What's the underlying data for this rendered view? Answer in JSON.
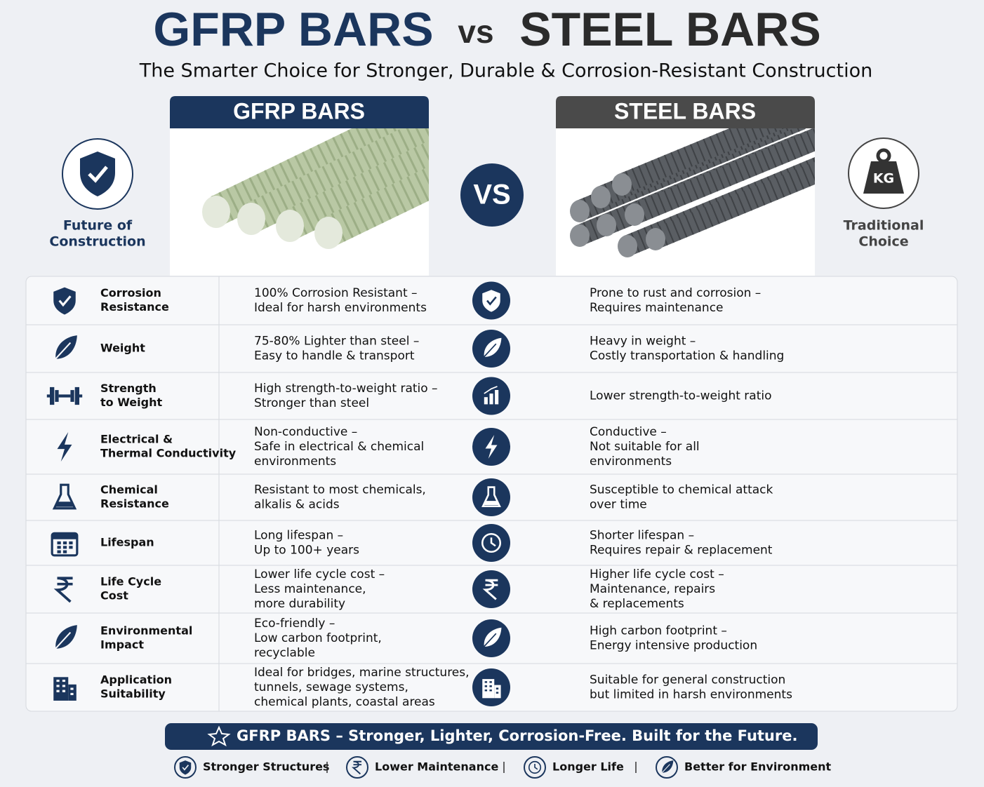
{
  "header": {
    "title_left": "GFRP BARS",
    "vs": "vs",
    "title_right": "STEEL BARS",
    "subtitle": "The Smarter Choice for Stronger, Durable & Corrosion-Resistant Construction"
  },
  "comparison": {
    "left_label": "GFRP BARS",
    "right_label": "STEEL BARS",
    "vs": "VS",
    "left_caption": [
      "Future of",
      "Construction"
    ],
    "right_icon_text": "KG",
    "right_caption": [
      "Traditional",
      "Choice"
    ]
  },
  "table": {
    "rows": [
      {
        "feature": [
          "Corrosion",
          "Resistance"
        ],
        "gfrp": [
          "100% Corrosion Resistant –",
          "Ideal for harsh environments"
        ],
        "steel": [
          "Prone to rust and corrosion –",
          "Requires maintenance"
        ]
      },
      {
        "feature": [
          "Weight"
        ],
        "gfrp": [
          "75-80% Lighter than steel –",
          "Easy to handle & transport"
        ],
        "steel": [
          "Heavy in weight –",
          "Costly transportation & handling"
        ]
      },
      {
        "feature": [
          "Strength",
          "to Weight"
        ],
        "gfrp": [
          "High strength-to-weight ratio –",
          "Stronger than steel"
        ],
        "steel": [
          "Lower strength-to-weight ratio"
        ]
      },
      {
        "feature": [
          "Electrical &",
          "Thermal Conductivity"
        ],
        "gfrp": [
          "Non-conductive –",
          "Safe in electrical & chemical",
          "environments"
        ],
        "steel": [
          "Conductive –",
          "Not suitable for all",
          "environments"
        ]
      },
      {
        "feature": [
          "Chemical",
          "Resistance"
        ],
        "gfrp": [
          "Resistant to most chemicals,",
          "alkalis & acids"
        ],
        "steel": [
          "Susceptible to chemical attack",
          "over time"
        ]
      },
      {
        "feature": [
          "Lifespan"
        ],
        "gfrp": [
          "Long lifespan –",
          "Up to 100+ years"
        ],
        "steel": [
          "Shorter lifespan –",
          "Requires repair & replacement"
        ]
      },
      {
        "feature": [
          "Life Cycle",
          "Cost"
        ],
        "gfrp": [
          "Lower life cycle cost –",
          "Less maintenance,",
          "more durability"
        ],
        "steel": [
          "Higher life cycle cost –",
          "Maintenance, repairs",
          "& replacements"
        ]
      },
      {
        "feature": [
          "Environmental",
          "Impact"
        ],
        "gfrp": [
          "Eco-friendly –",
          "Low carbon footprint,",
          "recyclable"
        ],
        "steel": [
          "High carbon footprint –",
          "Energy intensive production"
        ]
      },
      {
        "feature": [
          "Application",
          "Suitability"
        ],
        "gfrp": [
          "Ideal for bridges, marine structures,",
          "tunnels, sewage systems,",
          "chemical plants, coastal areas"
        ],
        "steel": [
          "Suitable for general construction",
          "but limited in harsh environments"
        ]
      }
    ]
  },
  "footer": {
    "banner": "GFRP BARS – Stronger, Lighter, Corrosion-Free. Built for the Future.",
    "items": [
      "Stronger Structures",
      "Lower Maintenance",
      "Longer Life",
      "Better for Environment"
    ]
  }
}
